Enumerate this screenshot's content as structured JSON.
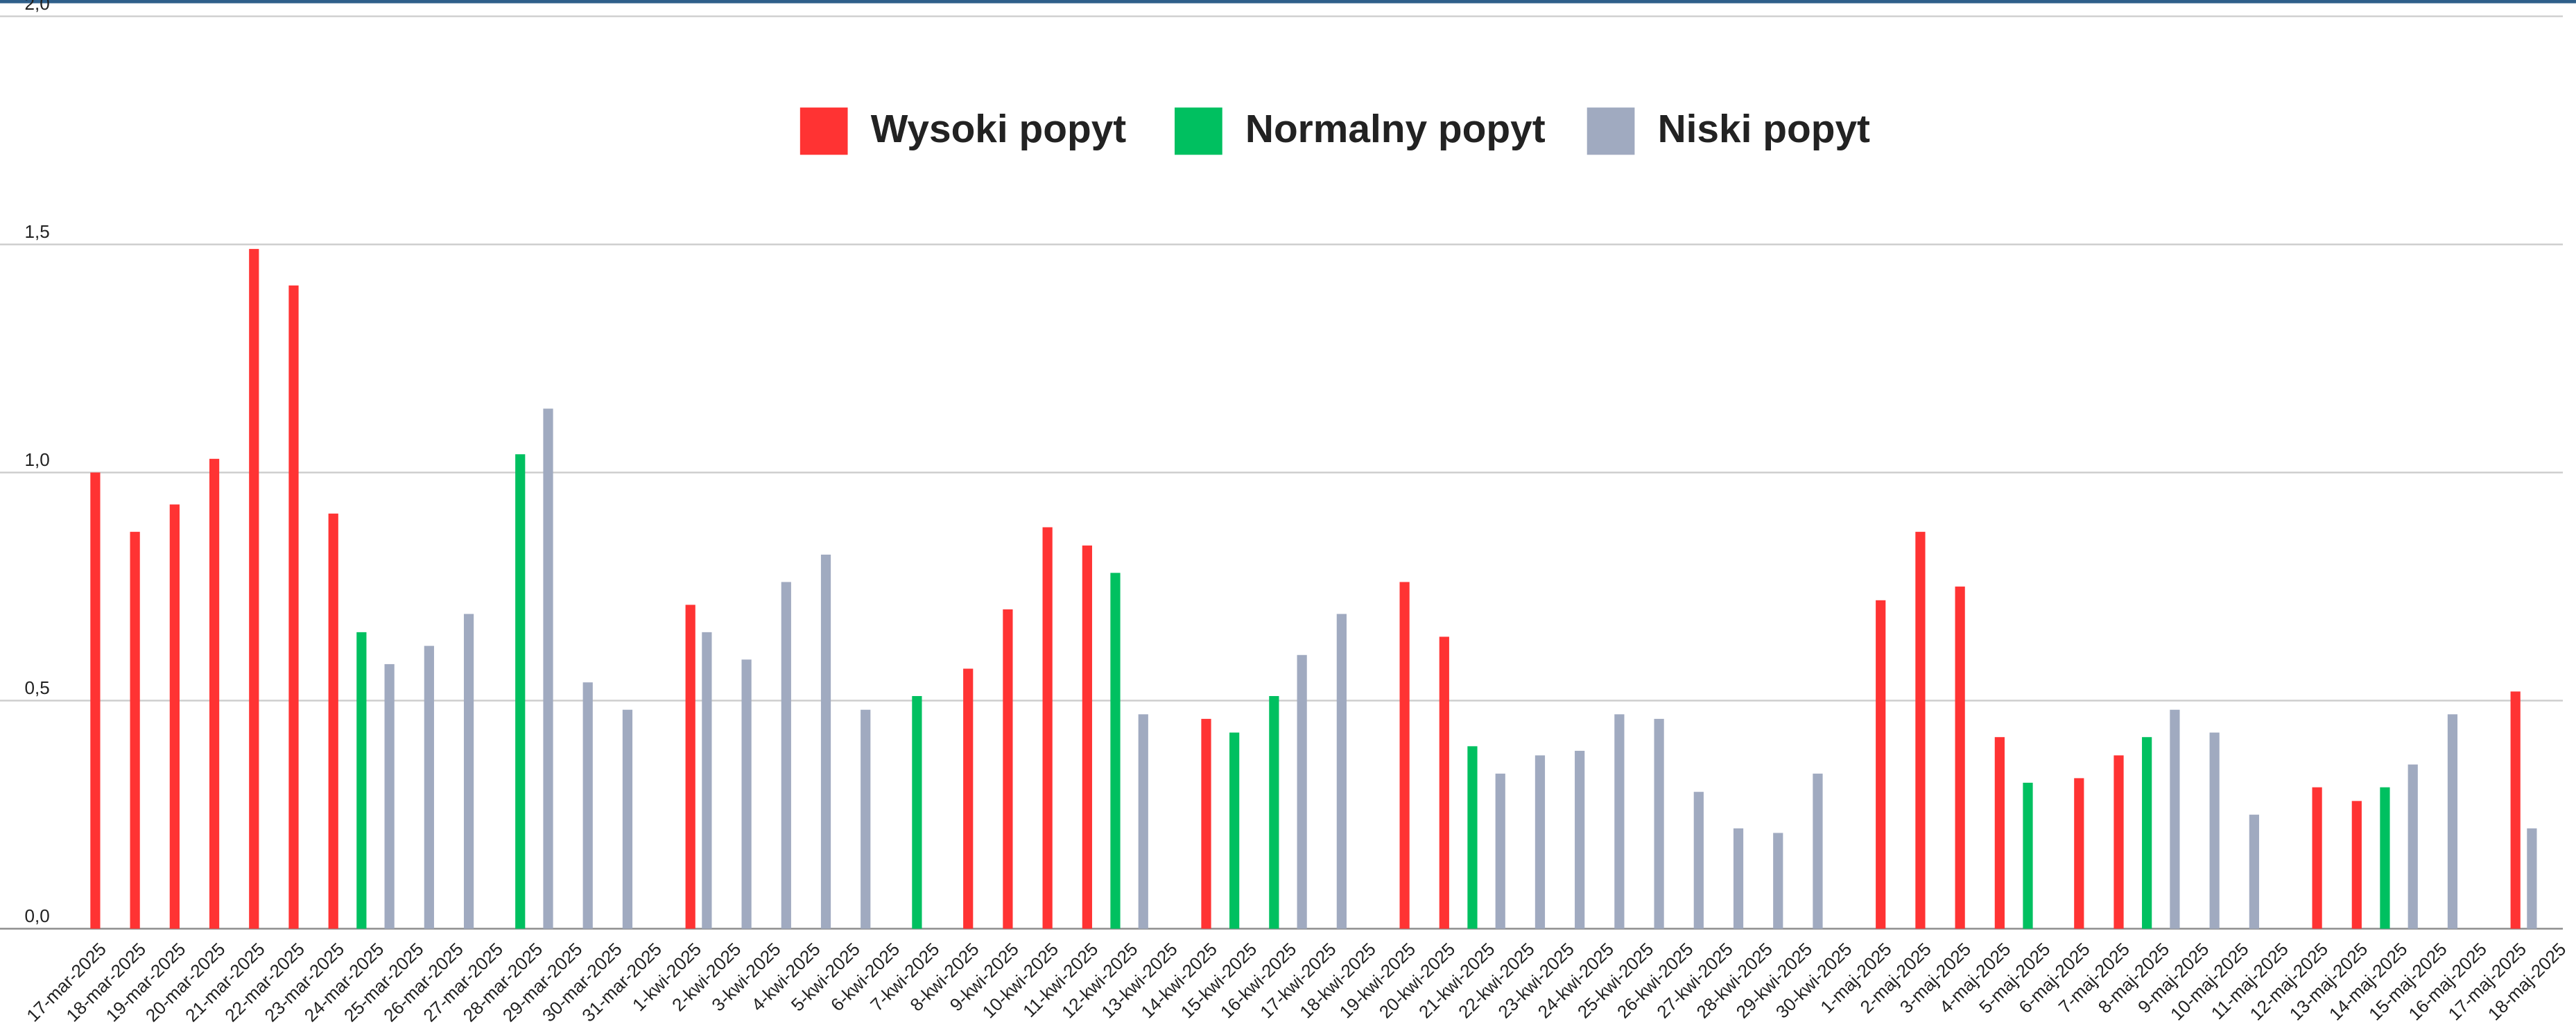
{
  "chart_data": {
    "type": "bar",
    "categories": [
      "17-mar-2025",
      "18-mar-2025",
      "19-mar-2025",
      "20-mar-2025",
      "21-mar-2025",
      "22-mar-2025",
      "23-mar-2025",
      "24-mar-2025",
      "25-mar-2025",
      "26-mar-2025",
      "27-mar-2025",
      "28-mar-2025",
      "29-mar-2025",
      "30-mar-2025",
      "31-mar-2025",
      "1-kwi-2025",
      "2-kwi-2025",
      "3-kwi-2025",
      "4-kwi-2025",
      "5-kwi-2025",
      "6-kwi-2025",
      "7-kwi-2025",
      "8-kwi-2025",
      "9-kwi-2025",
      "10-kwi-2025",
      "11-kwi-2025",
      "12-kwi-2025",
      "13-kwi-2025",
      "14-kwi-2025",
      "15-kwi-2025",
      "16-kwi-2025",
      "17-kwi-2025",
      "18-kwi-2025",
      "19-kwi-2025",
      "20-kwi-2025",
      "21-kwi-2025",
      "22-kwi-2025",
      "23-kwi-2025",
      "24-kwi-2025",
      "25-kwi-2025",
      "26-kwi-2025",
      "27-kwi-2025",
      "28-kwi-2025",
      "29-kwi-2025",
      "30-kwi-2025",
      "1-maj-2025",
      "2-maj-2025",
      "3-maj-2025",
      "4-maj-2025",
      "5-maj-2025",
      "6-maj-2025",
      "7-maj-2025",
      "8-maj-2025",
      "9-maj-2025",
      "10-maj-2025",
      "11-maj-2025",
      "12-maj-2025",
      "13-maj-2025",
      "14-maj-2025",
      "15-maj-2025",
      "16-maj-2025",
      "17-maj-2025",
      "18-maj-2025"
    ],
    "series": [
      {
        "name": "Wysoki popyt",
        "color": "#ff3333",
        "values": [
          1.0,
          0.87,
          0.93,
          1.03,
          1.49,
          1.41,
          0.91,
          null,
          null,
          null,
          null,
          null,
          null,
          null,
          null,
          0.71,
          null,
          null,
          null,
          null,
          null,
          null,
          0.57,
          0.7,
          0.88,
          0.84,
          null,
          null,
          0.46,
          null,
          null,
          null,
          null,
          0.76,
          0.64,
          null,
          null,
          null,
          null,
          null,
          null,
          null,
          null,
          null,
          null,
          0.72,
          0.87,
          0.75,
          0.42,
          null,
          0.33,
          0.38,
          null,
          null,
          null,
          null,
          0.31,
          0.28,
          null,
          null,
          null,
          0.52,
          null
        ]
      },
      {
        "name": "Normalny popyt",
        "color": "#00c060",
        "values": [
          null,
          null,
          null,
          null,
          null,
          null,
          null,
          0.65,
          null,
          null,
          null,
          1.04,
          null,
          null,
          null,
          null,
          null,
          null,
          null,
          null,
          null,
          0.51,
          null,
          null,
          null,
          null,
          0.78,
          null,
          null,
          0.43,
          0.51,
          null,
          null,
          null,
          null,
          0.4,
          null,
          null,
          null,
          null,
          null,
          null,
          null,
          null,
          null,
          null,
          null,
          null,
          null,
          0.32,
          null,
          null,
          0.42,
          null,
          null,
          null,
          null,
          null,
          0.31,
          null,
          null,
          null,
          null
        ]
      },
      {
        "name": "Niski popyt",
        "color": "#a0aac0",
        "values": [
          null,
          null,
          null,
          null,
          null,
          null,
          null,
          0.58,
          0.62,
          0.69,
          null,
          1.14,
          0.54,
          0.48,
          null,
          0.65,
          0.59,
          0.76,
          0.82,
          0.48,
          null,
          null,
          null,
          null,
          null,
          null,
          0.47,
          null,
          null,
          null,
          0.6,
          0.69,
          null,
          null,
          null,
          0.34,
          0.38,
          0.39,
          0.47,
          0.46,
          0.3,
          0.22,
          0.21,
          0.34,
          null,
          null,
          null,
          null,
          null,
          null,
          null,
          null,
          0.48,
          0.43,
          0.25,
          null,
          null,
          null,
          0.36,
          0.47,
          null,
          0.22,
          null
        ]
      }
    ],
    "ylim": [
      0,
      2
    ],
    "yticks": [
      {
        "value": 0,
        "label": "0,0"
      },
      {
        "value": 0.5,
        "label": "0,5"
      },
      {
        "value": 1,
        "label": "1,0"
      },
      {
        "value": 1.5,
        "label": "1,5"
      },
      {
        "value": 2,
        "label": "2,0"
      }
    ],
    "grid": true,
    "legend": "top"
  }
}
